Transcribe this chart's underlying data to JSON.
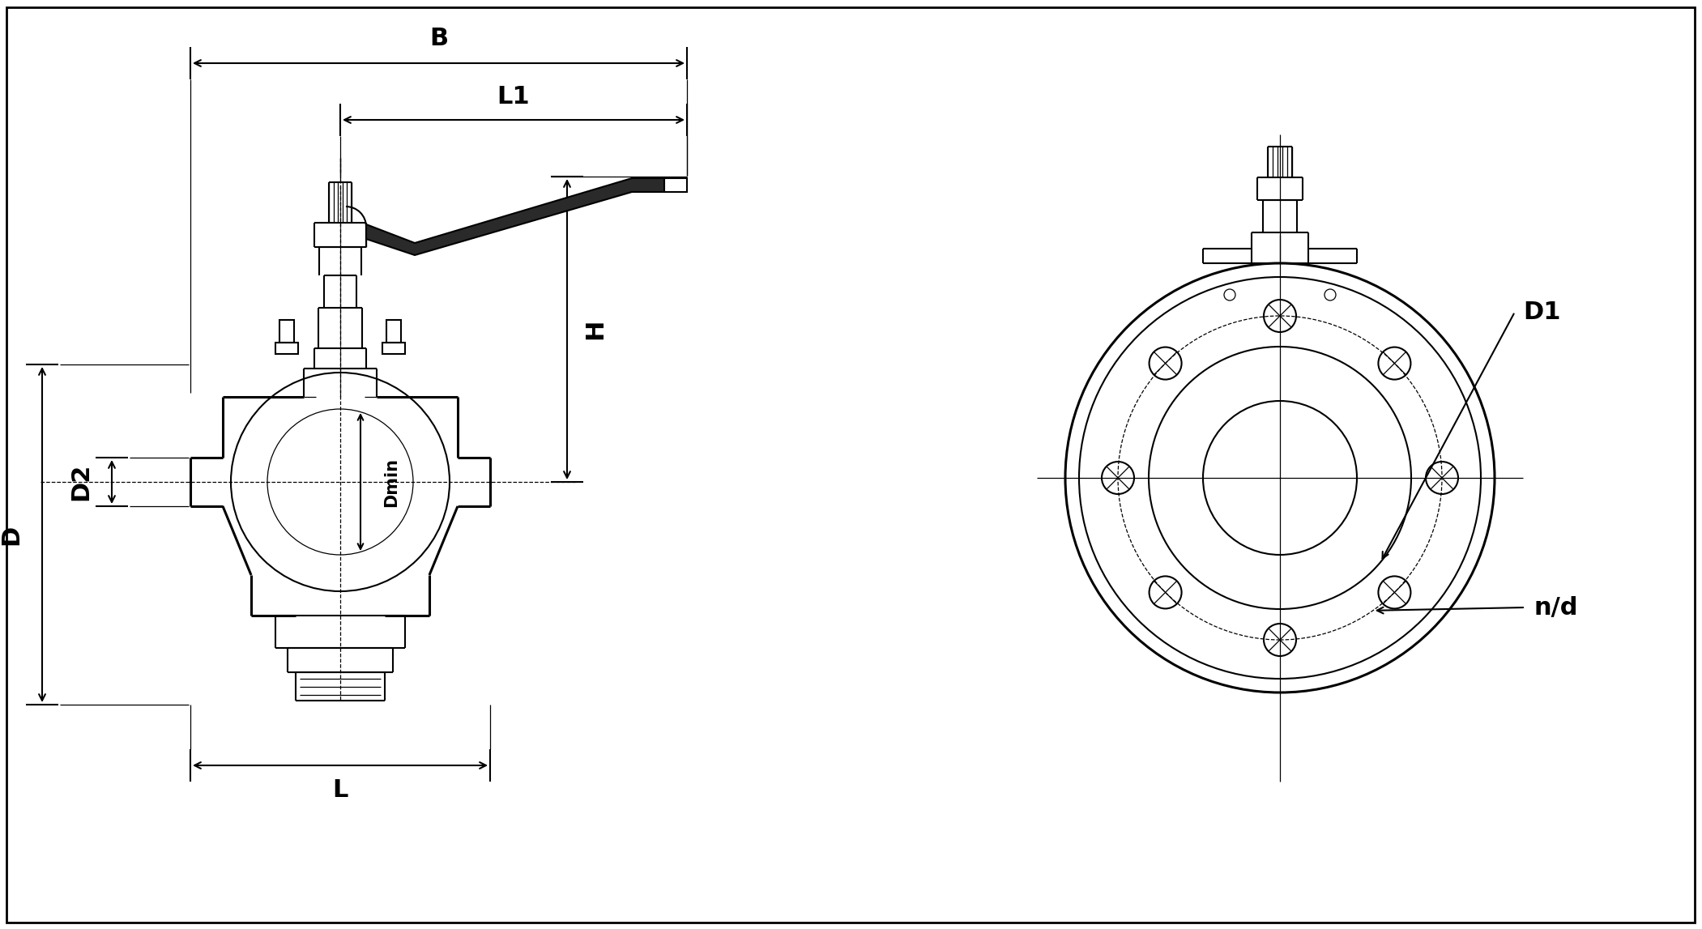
{
  "bg_color": "#ffffff",
  "lc": "#000000",
  "figsize": [
    21.01,
    11.47
  ],
  "dpi": 100,
  "labels": {
    "B": "B",
    "L1": "L1",
    "H": "H",
    "D": "D",
    "D2": "D2",
    "Dmin": "Dmin",
    "L": "L",
    "D1": "D1",
    "nd": "n/d"
  }
}
